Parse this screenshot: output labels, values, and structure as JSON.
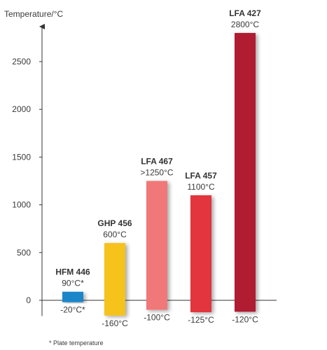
{
  "chart_data": {
    "type": "bar",
    "ylabel": "Temperature/°C",
    "ylim": [
      -150,
      2850
    ],
    "y_ticks": [
      0,
      500,
      1000,
      1500,
      2000,
      2500
    ],
    "grid": false,
    "series": [
      {
        "name": "HFM 446",
        "min": -20,
        "max": 90,
        "min_label": "-20°C*",
        "max_label": "90°C*",
        "color": "#1e87c8"
      },
      {
        "name": "GHP 456",
        "min": -160,
        "max": 600,
        "min_label": "-160°C",
        "max_label": "600°C",
        "color": "#f6c21a"
      },
      {
        "name": "LFA 467",
        "min": -100,
        "max": 1250,
        "min_label": "-100°C",
        "max_label": ">1250°C",
        "color": "#f07878"
      },
      {
        "name": "LFA 457",
        "min": -125,
        "max": 1100,
        "min_label": "-125°C",
        "max_label": "1100°C",
        "color": "#e2363e"
      },
      {
        "name": "LFA 427",
        "min": -120,
        "max": 2800,
        "min_label": "-120°C",
        "max_label": "2800°C",
        "color": "#b01c32"
      }
    ],
    "footnote": "* Plate temperature"
  }
}
